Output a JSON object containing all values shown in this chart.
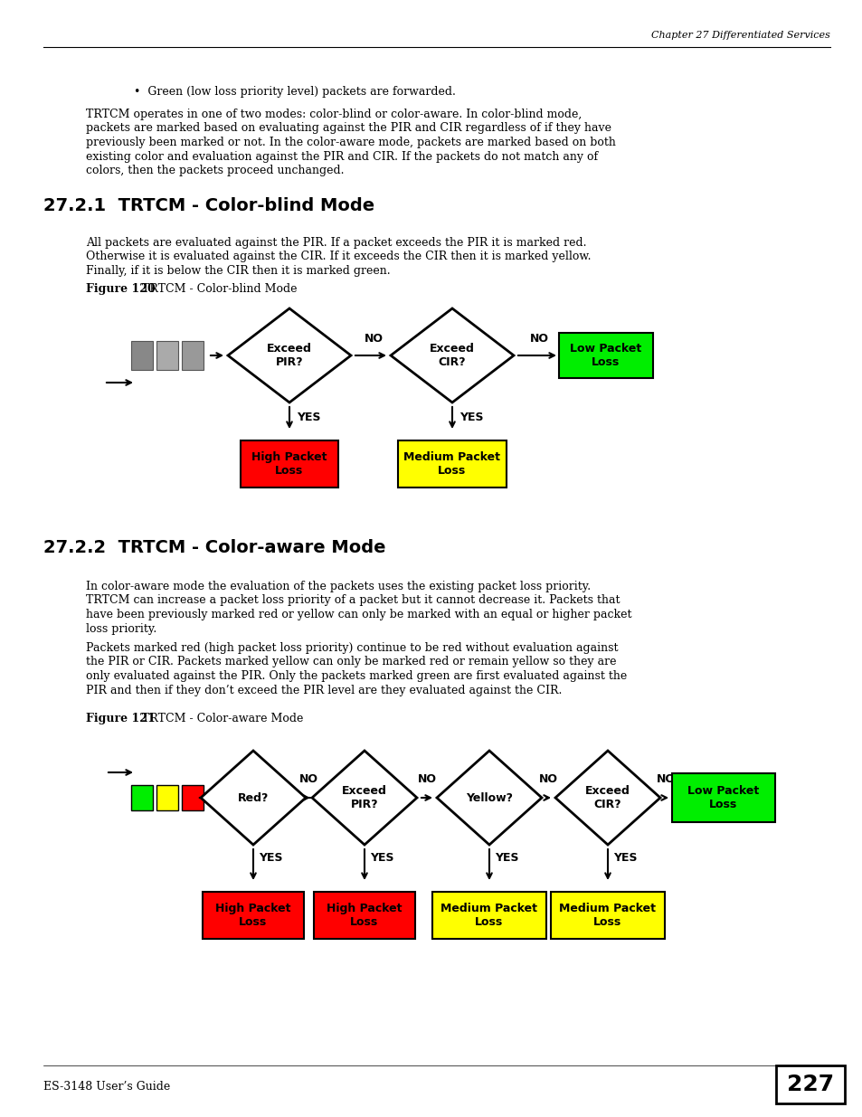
{
  "page_width": 9.54,
  "page_height": 12.35,
  "bg_color": "#ffffff",
  "header_text": "Chapter 27 Differentiated Services",
  "bullet_text": "Green (low loss priority level) packets are forwarded.",
  "para1_lines": [
    "TRTCM operates in one of two modes: color-blind or color-aware. In color-blind mode,",
    "packets are marked based on evaluating against the PIR and CIR regardless of if they have",
    "previously been marked or not. In the color-aware mode, packets are marked based on both",
    "existing color and evaluation against the PIR and CIR. If the packets do not match any of",
    "colors, then the packets proceed unchanged."
  ],
  "section1_title": "27.2.1  TRTCM - Color-blind Mode",
  "section1_para_lines": [
    "All packets are evaluated against the PIR. If a packet exceeds the PIR it is marked red.",
    "Otherwise it is evaluated against the CIR. If it exceeds the CIR then it is marked yellow.",
    "Finally, if it is below the CIR then it is marked green."
  ],
  "fig120_label_bold": "Figure 120",
  "fig120_label_normal": "   TRTCM - Color-blind Mode",
  "section2_title": "27.2.2  TRTCM - Color-aware Mode",
  "section2_para1_lines": [
    "In color-aware mode the evaluation of the packets uses the existing packet loss priority.",
    "TRTCM can increase a packet loss priority of a packet but it cannot decrease it. Packets that",
    "have been previously marked red or yellow can only be marked with an equal or higher packet",
    "loss priority."
  ],
  "section2_para2_lines": [
    "Packets marked red (high packet loss priority) continue to be red without evaluation against",
    "the PIR or CIR. Packets marked yellow can only be marked red or remain yellow so they are",
    "only evaluated against the PIR. Only the packets marked green are first evaluated against the",
    "PIR and then if they don’t exceed the PIR level are they evaluated against the CIR."
  ],
  "fig121_label_bold": "Figure 121",
  "fig121_label_normal": "   TRTCM - Color-aware Mode",
  "footer_text": "ES-3148 User’s Guide",
  "footer_page": "227",
  "green_color": "#00ee00",
  "red_color": "#ff0000",
  "yellow_color": "#ffff00",
  "gray_colors": [
    "#888888",
    "#aaaaaa",
    "#999999"
  ]
}
